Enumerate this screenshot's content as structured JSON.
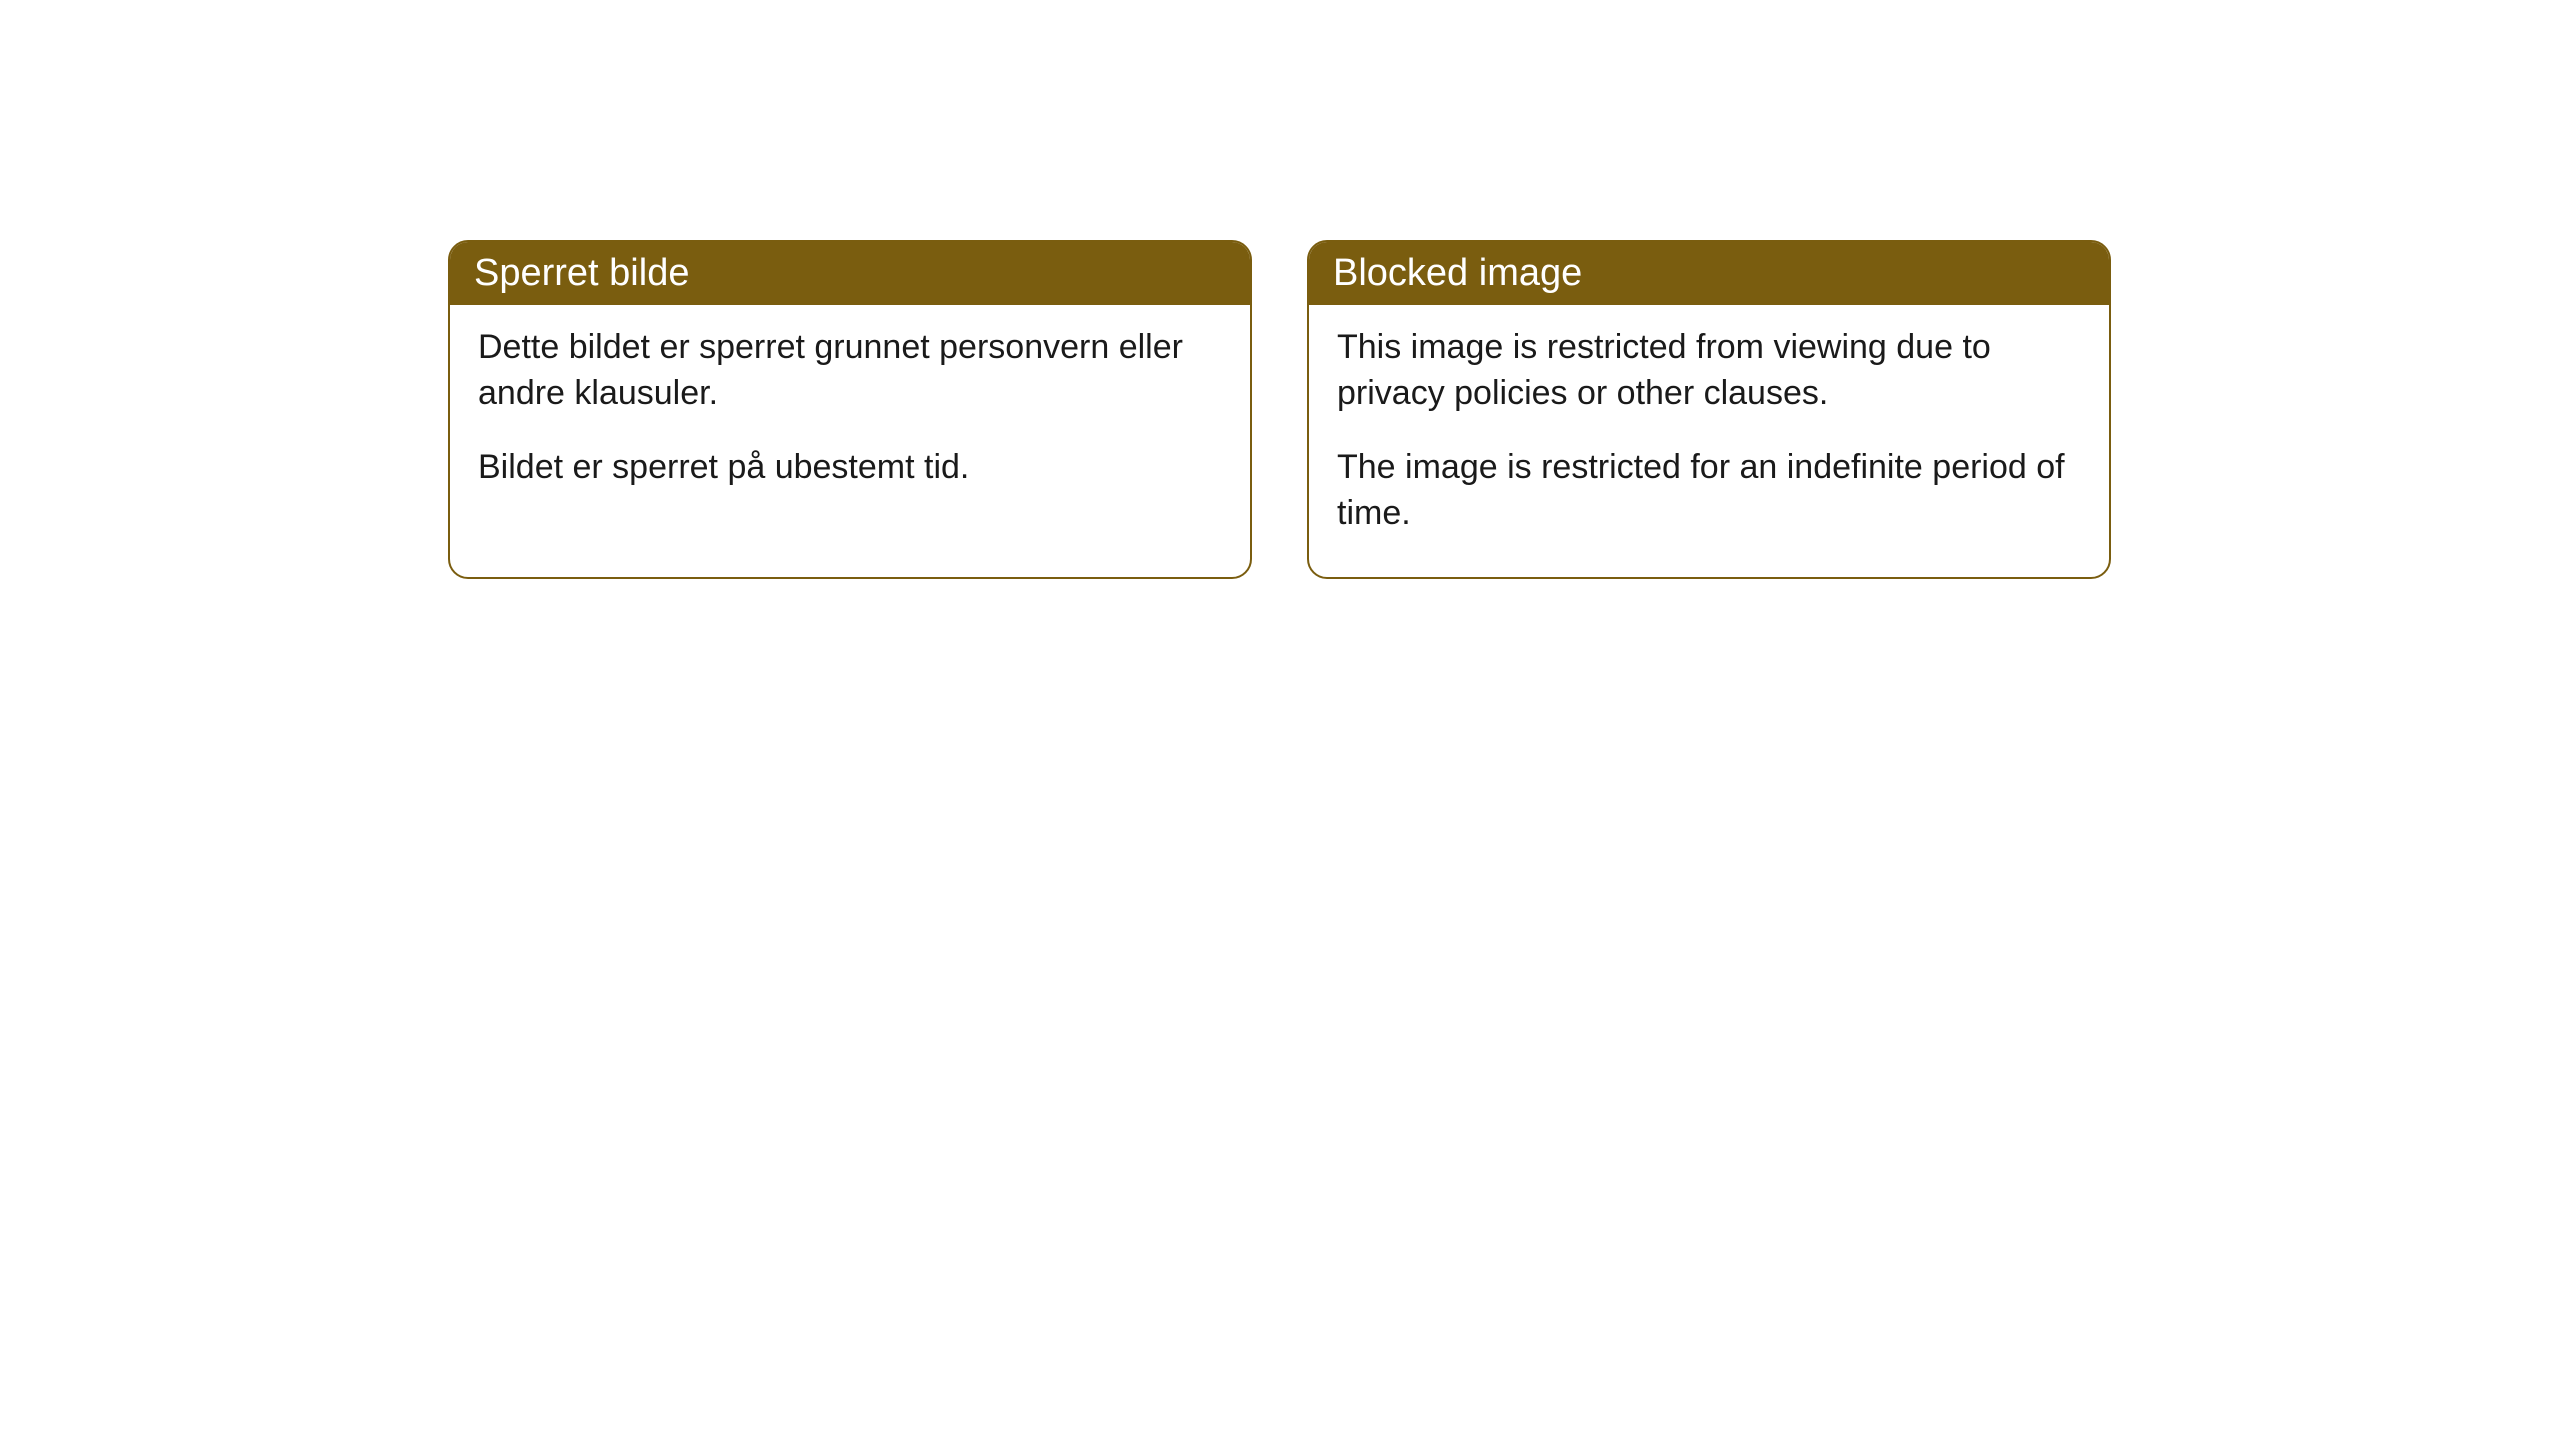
{
  "cards": [
    {
      "header": "Sperret bilde",
      "paragraph1": "Dette bildet er sperret grunnet personvern eller andre klausuler.",
      "paragraph2": "Bildet er sperret på ubestemt tid."
    },
    {
      "header": "Blocked image",
      "paragraph1": "This image is restricted from viewing due to privacy policies or other clauses.",
      "paragraph2": "The image is restricted for an indefinite period of time."
    }
  ],
  "styling": {
    "header_bg_color": "#7a5d0f",
    "header_text_color": "#ffffff",
    "border_color": "#7a5d0f",
    "body_bg_color": "#ffffff",
    "body_text_color": "#1a1a1a",
    "border_radius": 20,
    "header_fontsize": 38,
    "body_fontsize": 34
  }
}
